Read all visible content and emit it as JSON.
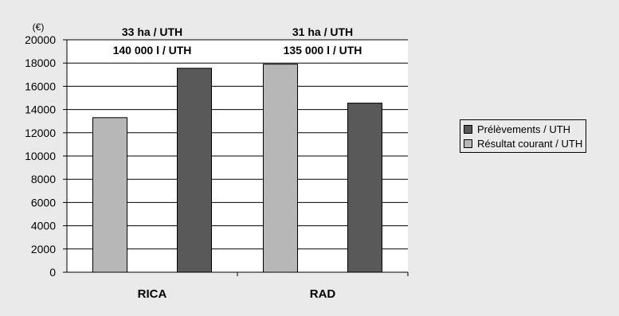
{
  "chart_data": {
    "type": "bar",
    "unit_label": "(€)",
    "categories": [
      "RICA",
      "RAD"
    ],
    "series": [
      {
        "name": "Résultat courant / UTH",
        "values": [
          13300,
          17900
        ],
        "color": "#b7b7b7"
      },
      {
        "name": "Prélèvements / UTH",
        "values": [
          17550,
          14550
        ],
        "color": "#595959"
      }
    ],
    "annotations": [
      {
        "category": "RICA",
        "lines": [
          "33 ha / UTH",
          "140 000 l / UTH"
        ]
      },
      {
        "category": "RAD",
        "lines": [
          "31 ha / UTH",
          "135 000 l / UTH"
        ]
      }
    ],
    "yticks": [
      0,
      2000,
      4000,
      6000,
      8000,
      10000,
      12000,
      14000,
      16000,
      18000,
      20000
    ],
    "ylim": [
      0,
      20000
    ],
    "legend": {
      "placement": "right",
      "order": [
        "Prélèvements / UTH",
        "Résultat courant / UTH"
      ]
    },
    "grid": true,
    "plot_background": "#ffffff",
    "chart_background": "#eaeaea",
    "title": "",
    "xlabel": "",
    "ylabel": ""
  }
}
